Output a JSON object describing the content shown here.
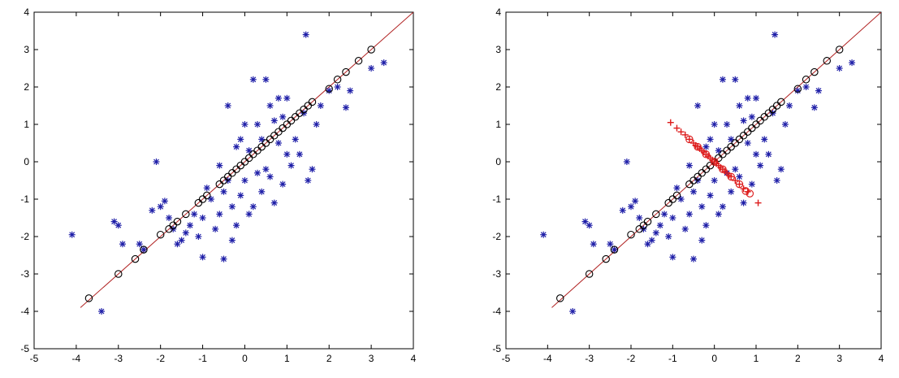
{
  "chart_data": [
    {
      "type": "scatter",
      "title": "",
      "xlabel": "",
      "ylabel": "",
      "xlim": [
        -5,
        4
      ],
      "ylim": [
        -5,
        4
      ],
      "xticks": [
        "-5",
        "-4",
        "-3",
        "-2",
        "-1",
        "0",
        "1",
        "2",
        "3",
        "4"
      ],
      "yticks": [
        "-5",
        "-4",
        "-3",
        "-2",
        "-1",
        "0",
        "1",
        "2",
        "3",
        "4"
      ],
      "grid": false,
      "series": [
        {
          "marker": "asterisk",
          "color": "#1f1fa8",
          "points": [
            [
              -4.1,
              -1.95
            ],
            [
              -3.4,
              -4.0
            ],
            [
              -3.1,
              -1.6
            ],
            [
              -3.0,
              -1.7
            ],
            [
              -2.9,
              -2.2
            ],
            [
              -2.5,
              -2.2
            ],
            [
              -2.4,
              -2.35
            ],
            [
              -2.2,
              -1.3
            ],
            [
              -2.1,
              0.0
            ],
            [
              -2.0,
              -1.2
            ],
            [
              -1.9,
              -1.05
            ],
            [
              -1.8,
              -1.5
            ],
            [
              -1.7,
              -1.8
            ],
            [
              -1.6,
              -2.2
            ],
            [
              -1.5,
              -2.1
            ],
            [
              -1.4,
              -1.9
            ],
            [
              -1.3,
              -1.7
            ],
            [
              -1.2,
              -1.4
            ],
            [
              -1.1,
              -2.0
            ],
            [
              -1.0,
              -2.55
            ],
            [
              -1.0,
              -1.5
            ],
            [
              -0.9,
              -0.7
            ],
            [
              -0.8,
              -1.0
            ],
            [
              -0.7,
              -1.8
            ],
            [
              -0.6,
              -1.4
            ],
            [
              -0.6,
              -0.1
            ],
            [
              -0.5,
              -2.6
            ],
            [
              -0.5,
              -0.8
            ],
            [
              -0.4,
              1.5
            ],
            [
              -0.4,
              -0.5
            ],
            [
              -0.3,
              -1.2
            ],
            [
              -0.3,
              -2.1
            ],
            [
              -0.2,
              -1.7
            ],
            [
              -0.2,
              0.4
            ],
            [
              -0.1,
              0.6
            ],
            [
              -0.1,
              -0.9
            ],
            [
              0.0,
              1.0
            ],
            [
              0.0,
              -0.5
            ],
            [
              0.1,
              -1.4
            ],
            [
              0.1,
              0.3
            ],
            [
              0.2,
              2.2
            ],
            [
              0.2,
              -1.2
            ],
            [
              0.3,
              1.0
            ],
            [
              0.3,
              -0.3
            ],
            [
              0.4,
              -0.8
            ],
            [
              0.4,
              0.6
            ],
            [
              0.5,
              2.2
            ],
            [
              0.5,
              -0.2
            ],
            [
              0.6,
              1.5
            ],
            [
              0.6,
              -0.4
            ],
            [
              0.7,
              1.1
            ],
            [
              0.7,
              -1.1
            ],
            [
              0.8,
              1.7
            ],
            [
              0.8,
              0.5
            ],
            [
              0.9,
              -0.6
            ],
            [
              0.9,
              1.2
            ],
            [
              1.0,
              0.2
            ],
            [
              1.0,
              1.7
            ],
            [
              1.1,
              -0.1
            ],
            [
              1.2,
              0.6
            ],
            [
              1.3,
              0.2
            ],
            [
              1.4,
              1.3
            ],
            [
              1.45,
              3.4
            ],
            [
              1.5,
              -0.5
            ],
            [
              1.6,
              -0.2
            ],
            [
              1.7,
              1.0
            ],
            [
              1.8,
              1.5
            ],
            [
              2.0,
              1.9
            ],
            [
              2.2,
              2.0
            ],
            [
              2.4,
              1.45
            ],
            [
              2.5,
              1.9
            ],
            [
              3.0,
              2.5
            ],
            [
              3.3,
              2.65
            ]
          ]
        },
        {
          "marker": "circle",
          "color": "#000000",
          "points": [
            [
              -3.7,
              -3.65
            ],
            [
              -3.0,
              -3.0
            ],
            [
              -2.6,
              -2.6
            ],
            [
              -2.4,
              -2.35
            ],
            [
              -2.0,
              -1.95
            ],
            [
              -1.8,
              -1.8
            ],
            [
              -1.7,
              -1.7
            ],
            [
              -1.6,
              -1.6
            ],
            [
              -1.4,
              -1.4
            ],
            [
              -1.1,
              -1.1
            ],
            [
              -1.0,
              -1.0
            ],
            [
              -0.9,
              -0.9
            ],
            [
              -0.6,
              -0.6
            ],
            [
              -0.5,
              -0.5
            ],
            [
              -0.4,
              -0.4
            ],
            [
              -0.3,
              -0.3
            ],
            [
              -0.2,
              -0.2
            ],
            [
              -0.1,
              -0.1
            ],
            [
              0.0,
              0.0
            ],
            [
              0.1,
              0.1
            ],
            [
              0.2,
              0.2
            ],
            [
              0.3,
              0.3
            ],
            [
              0.4,
              0.4
            ],
            [
              0.5,
              0.5
            ],
            [
              0.6,
              0.6
            ],
            [
              0.7,
              0.7
            ],
            [
              0.8,
              0.8
            ],
            [
              0.9,
              0.9
            ],
            [
              1.0,
              1.0
            ],
            [
              1.1,
              1.1
            ],
            [
              1.2,
              1.2
            ],
            [
              1.3,
              1.3
            ],
            [
              1.4,
              1.4
            ],
            [
              1.5,
              1.5
            ],
            [
              1.6,
              1.6
            ],
            [
              2.0,
              1.95
            ],
            [
              2.2,
              2.2
            ],
            [
              2.4,
              2.4
            ],
            [
              2.7,
              2.7
            ],
            [
              3.0,
              3.0
            ]
          ]
        }
      ],
      "line": {
        "color": "#b02020",
        "from": [
          -3.9,
          -3.9
        ],
        "to": [
          4.0,
          4.0
        ]
      }
    },
    {
      "type": "scatter",
      "title": "",
      "xlabel": "",
      "ylabel": "",
      "xlim": [
        -5,
        4
      ],
      "ylim": [
        -5,
        4
      ],
      "xticks": [
        "-5",
        "-4",
        "-3",
        "-2",
        "-1",
        "0",
        "1",
        "2",
        "3",
        "4"
      ],
      "yticks": [
        "-5",
        "-4",
        "-3",
        "-2",
        "-1",
        "0",
        "1",
        "2",
        "3",
        "4"
      ],
      "grid": false,
      "series": [
        {
          "marker": "asterisk",
          "color": "#1f1fa8",
          "points": [
            [
              -4.1,
              -1.95
            ],
            [
              -3.4,
              -4.0
            ],
            [
              -3.1,
              -1.6
            ],
            [
              -3.0,
              -1.7
            ],
            [
              -2.9,
              -2.2
            ],
            [
              -2.5,
              -2.2
            ],
            [
              -2.4,
              -2.35
            ],
            [
              -2.2,
              -1.3
            ],
            [
              -2.1,
              0.0
            ],
            [
              -2.0,
              -1.2
            ],
            [
              -1.9,
              -1.05
            ],
            [
              -1.8,
              -1.5
            ],
            [
              -1.7,
              -1.8
            ],
            [
              -1.6,
              -2.2
            ],
            [
              -1.5,
              -2.1
            ],
            [
              -1.4,
              -1.9
            ],
            [
              -1.3,
              -1.7
            ],
            [
              -1.2,
              -1.4
            ],
            [
              -1.1,
              -2.0
            ],
            [
              -1.0,
              -2.55
            ],
            [
              -1.0,
              -1.5
            ],
            [
              -0.9,
              -0.7
            ],
            [
              -0.8,
              -1.0
            ],
            [
              -0.7,
              -1.8
            ],
            [
              -0.6,
              -1.4
            ],
            [
              -0.6,
              -0.1
            ],
            [
              -0.5,
              -2.6
            ],
            [
              -0.5,
              -0.8
            ],
            [
              -0.4,
              1.5
            ],
            [
              -0.4,
              -0.5
            ],
            [
              -0.3,
              -1.2
            ],
            [
              -0.3,
              -2.1
            ],
            [
              -0.2,
              -1.7
            ],
            [
              -0.2,
              0.4
            ],
            [
              -0.1,
              0.6
            ],
            [
              -0.1,
              -0.9
            ],
            [
              0.0,
              1.0
            ],
            [
              0.0,
              -0.5
            ],
            [
              0.1,
              -1.4
            ],
            [
              0.1,
              0.3
            ],
            [
              0.2,
              2.2
            ],
            [
              0.2,
              -1.2
            ],
            [
              0.3,
              1.0
            ],
            [
              0.3,
              -0.3
            ],
            [
              0.4,
              -0.8
            ],
            [
              0.4,
              0.6
            ],
            [
              0.5,
              2.2
            ],
            [
              0.5,
              -0.2
            ],
            [
              0.6,
              1.5
            ],
            [
              0.6,
              -0.4
            ],
            [
              0.7,
              1.1
            ],
            [
              0.7,
              -1.1
            ],
            [
              0.8,
              1.7
            ],
            [
              0.8,
              0.5
            ],
            [
              0.9,
              -0.6
            ],
            [
              0.9,
              1.2
            ],
            [
              1.0,
              0.2
            ],
            [
              1.0,
              1.7
            ],
            [
              1.1,
              -0.1
            ],
            [
              1.2,
              0.6
            ],
            [
              1.3,
              0.2
            ],
            [
              1.4,
              1.3
            ],
            [
              1.45,
              3.4
            ],
            [
              1.5,
              -0.5
            ],
            [
              1.6,
              -0.2
            ],
            [
              1.7,
              1.0
            ],
            [
              1.8,
              1.5
            ],
            [
              2.0,
              1.9
            ],
            [
              2.2,
              2.0
            ],
            [
              2.4,
              1.45
            ],
            [
              2.5,
              1.9
            ],
            [
              3.0,
              2.5
            ],
            [
              3.3,
              2.65
            ]
          ]
        },
        {
          "marker": "circle",
          "color": "#000000",
          "points": [
            [
              -3.7,
              -3.65
            ],
            [
              -3.0,
              -3.0
            ],
            [
              -2.6,
              -2.6
            ],
            [
              -2.4,
              -2.35
            ],
            [
              -2.0,
              -1.95
            ],
            [
              -1.8,
              -1.8
            ],
            [
              -1.7,
              -1.7
            ],
            [
              -1.6,
              -1.6
            ],
            [
              -1.4,
              -1.4
            ],
            [
              -1.1,
              -1.1
            ],
            [
              -1.0,
              -1.0
            ],
            [
              -0.9,
              -0.9
            ],
            [
              -0.6,
              -0.6
            ],
            [
              -0.5,
              -0.5
            ],
            [
              -0.4,
              -0.4
            ],
            [
              -0.3,
              -0.3
            ],
            [
              -0.2,
              -0.2
            ],
            [
              -0.1,
              -0.1
            ],
            [
              0.0,
              0.0
            ],
            [
              0.1,
              0.1
            ],
            [
              0.2,
              0.2
            ],
            [
              0.3,
              0.3
            ],
            [
              0.4,
              0.4
            ],
            [
              0.5,
              0.5
            ],
            [
              0.6,
              0.6
            ],
            [
              0.7,
              0.7
            ],
            [
              0.8,
              0.8
            ],
            [
              0.9,
              0.9
            ],
            [
              1.0,
              1.0
            ],
            [
              1.1,
              1.1
            ],
            [
              1.2,
              1.2
            ],
            [
              1.3,
              1.3
            ],
            [
              1.4,
              1.4
            ],
            [
              1.5,
              1.5
            ],
            [
              1.6,
              1.6
            ],
            [
              2.0,
              1.95
            ],
            [
              2.2,
              2.2
            ],
            [
              2.4,
              2.4
            ],
            [
              2.7,
              2.7
            ],
            [
              3.0,
              3.0
            ]
          ]
        },
        {
          "marker": "plus",
          "color": "#dd1c1c",
          "points": [
            [
              -1.05,
              1.05
            ],
            [
              -0.9,
              0.9
            ],
            [
              -0.8,
              0.8
            ],
            [
              -0.7,
              0.72
            ],
            [
              -0.6,
              0.6
            ],
            [
              -0.5,
              0.5
            ],
            [
              -0.45,
              0.44
            ],
            [
              -0.4,
              0.4
            ],
            [
              -0.35,
              0.35
            ],
            [
              -0.3,
              0.3
            ],
            [
              -0.25,
              0.26
            ],
            [
              -0.2,
              0.2
            ],
            [
              -0.15,
              0.15
            ],
            [
              -0.1,
              0.1
            ],
            [
              -0.05,
              0.05
            ],
            [
              0.0,
              0.0
            ],
            [
              0.05,
              -0.05
            ],
            [
              0.1,
              -0.1
            ],
            [
              0.15,
              -0.15
            ],
            [
              0.2,
              -0.2
            ],
            [
              0.25,
              -0.25
            ],
            [
              0.3,
              -0.3
            ],
            [
              0.35,
              -0.36
            ],
            [
              0.4,
              -0.4
            ],
            [
              0.5,
              -0.5
            ],
            [
              0.6,
              -0.6
            ],
            [
              0.7,
              -0.72
            ],
            [
              0.8,
              -0.8
            ],
            [
              1.05,
              -1.1
            ]
          ]
        },
        {
          "marker": "circle",
          "color": "#dd1c1c",
          "points": [
            [
              -0.6,
              0.6
            ],
            [
              -0.4,
              0.4
            ],
            [
              -0.2,
              0.2
            ],
            [
              0.0,
              0.0
            ],
            [
              0.2,
              -0.2
            ],
            [
              0.4,
              -0.4
            ],
            [
              0.6,
              -0.6
            ],
            [
              0.75,
              -0.78
            ],
            [
              0.85,
              -0.85
            ]
          ]
        }
      ],
      "line": {
        "color": "#b02020",
        "from": [
          -3.9,
          -3.9
        ],
        "to": [
          4.0,
          4.0
        ]
      }
    }
  ]
}
